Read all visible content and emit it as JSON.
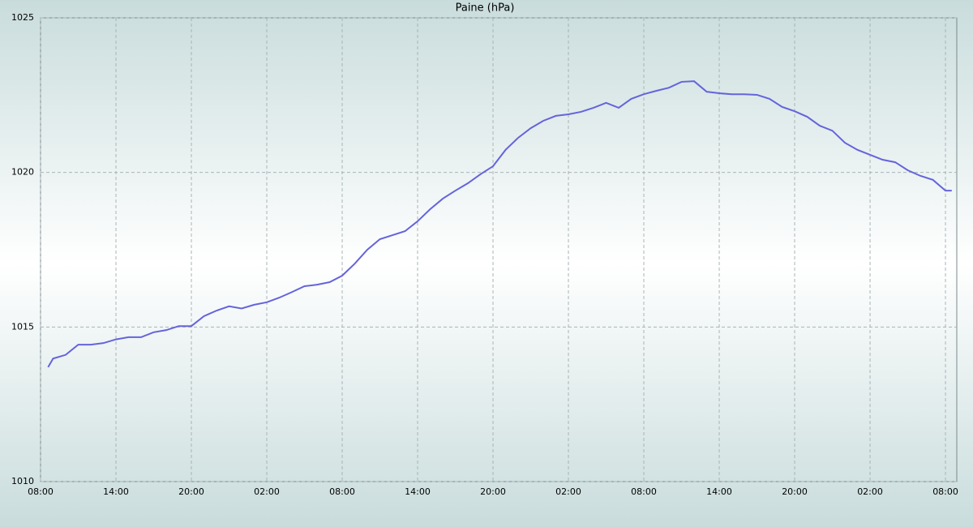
{
  "chart_data": {
    "type": "line",
    "title": "Paine (hPa)",
    "x": [
      0.6,
      1,
      2,
      3,
      4,
      5,
      6,
      7,
      8,
      9,
      10,
      11,
      12,
      13,
      14,
      15,
      16,
      17,
      18,
      19,
      20,
      21,
      22,
      23,
      24,
      25,
      26,
      27,
      28,
      29,
      30,
      31,
      32,
      33,
      34,
      35,
      36,
      37,
      38,
      39,
      40,
      41,
      42,
      43,
      44,
      45,
      46,
      47,
      48,
      49,
      50,
      51,
      52,
      53,
      54,
      55,
      56,
      57,
      58,
      59,
      60,
      61,
      62,
      63,
      64,
      65,
      66,
      67,
      68,
      69,
      70,
      71,
      72,
      72.5
    ],
    "series": [
      {
        "name": "Paine",
        "color": "#6464dc",
        "values": [
          1013.7,
          1013.98,
          1014.1,
          1014.43,
          1014.43,
          1014.48,
          1014.6,
          1014.67,
          1014.67,
          1014.83,
          1014.9,
          1015.03,
          1015.03,
          1015.35,
          1015.53,
          1015.67,
          1015.6,
          1015.72,
          1015.8,
          1015.95,
          1016.13,
          1016.32,
          1016.37,
          1016.45,
          1016.66,
          1017.05,
          1017.5,
          1017.84,
          1017.97,
          1018.1,
          1018.42,
          1018.81,
          1019.15,
          1019.41,
          1019.65,
          1019.94,
          1020.2,
          1020.73,
          1021.12,
          1021.43,
          1021.67,
          1021.83,
          1021.88,
          1021.96,
          1022.09,
          1022.25,
          1022.09,
          1022.38,
          1022.53,
          1022.64,
          1022.74,
          1022.93,
          1022.95,
          1022.61,
          1022.56,
          1022.53,
          1022.53,
          1022.51,
          1022.38,
          1022.12,
          1021.98,
          1021.8,
          1021.51,
          1021.35,
          1020.96,
          1020.73,
          1020.57,
          1020.41,
          1020.33,
          1020.07,
          1019.89,
          1019.76,
          1019.41,
          1019.41
        ]
      }
    ],
    "xlim": [
      0,
      72.9
    ],
    "xticks": [
      {
        "value": 0,
        "label": "08:00"
      },
      {
        "value": 6,
        "label": "14:00"
      },
      {
        "value": 12,
        "label": "20:00"
      },
      {
        "value": 18,
        "label": "02:00"
      },
      {
        "value": 24,
        "label": "08:00"
      },
      {
        "value": 30,
        "label": "14:00"
      },
      {
        "value": 36,
        "label": "20:00"
      },
      {
        "value": 42,
        "label": "02:00"
      },
      {
        "value": 48,
        "label": "08:00"
      },
      {
        "value": 54,
        "label": "14:00"
      },
      {
        "value": 60,
        "label": "20:00"
      },
      {
        "value": 66,
        "label": "02:00"
      },
      {
        "value": 72,
        "label": "08:00"
      }
    ],
    "ylim": [
      1010,
      1025
    ],
    "yticks": [
      1010,
      1015,
      1020,
      1025
    ],
    "grid": true
  }
}
